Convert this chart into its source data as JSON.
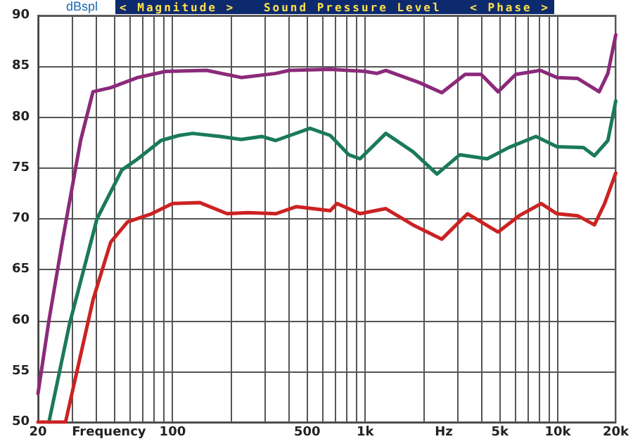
{
  "chart_data": {
    "type": "line",
    "title": "Sound Pressure Level",
    "ylabel": "dBspl",
    "xlabel": "Frequency",
    "annotations": [
      "< Magnitude >",
      "< Phase >",
      "Hz"
    ],
    "log": "x",
    "grid": true,
    "xlim": [
      20,
      20000
    ],
    "ylim": [
      50,
      90
    ],
    "xticks": [
      20,
      {
        "value": 30,
        "label": null
      },
      {
        "value": 40,
        "label": null
      },
      {
        "value": 50,
        "label": null
      },
      {
        "value": 60,
        "label": null
      },
      {
        "value": 70,
        "label": null
      },
      {
        "value": 80,
        "label": null
      },
      {
        "value": 90,
        "label": null
      },
      100,
      {
        "value": 200,
        "label": null
      },
      {
        "value": 300,
        "label": null
      },
      {
        "value": 400,
        "label": null
      },
      500,
      {
        "value": 600,
        "label": null
      },
      {
        "value": 700,
        "label": null
      },
      {
        "value": 800,
        "label": null
      },
      {
        "value": 900,
        "label": null
      },
      {
        "value": 1000,
        "label": "1k"
      },
      {
        "value": 2000,
        "label": null
      },
      {
        "value": 3000,
        "label": null
      },
      {
        "value": 4000,
        "label": null
      },
      {
        "value": 5000,
        "label": "5k"
      },
      {
        "value": 6000,
        "label": null
      },
      {
        "value": 7000,
        "label": null
      },
      {
        "value": 8000,
        "label": null
      },
      {
        "value": 9000,
        "label": null
      },
      {
        "value": 10000,
        "label": "10k"
      },
      {
        "value": 20000,
        "label": "20k"
      }
    ],
    "yticks": [
      50,
      55,
      60,
      65,
      70,
      75,
      80,
      85,
      90
    ],
    "series": [
      {
        "color": "#8b2a7a",
        "x": [
          20,
          22.8,
          26.9,
          33.3,
          38.6,
          47.7,
          66,
          92,
          150,
          227,
          343,
          404,
          658,
          1000,
          1150,
          1280,
          1910,
          2500,
          3300,
          4000,
          4900,
          6050,
          8100,
          9900,
          12700,
          16400,
          18200,
          20000
        ],
        "values": [
          52.8,
          60,
          68,
          77.7,
          82.5,
          82.9,
          83.9,
          84.5,
          84.6,
          83.9,
          84.3,
          84.6,
          84.7,
          84.5,
          84.3,
          84.6,
          83.4,
          82.4,
          84.2,
          84.2,
          82.5,
          84.2,
          84.6,
          83.9,
          83.8,
          82.5,
          84.3,
          88.1
        ]
      },
      {
        "color": "#1a7a5a",
        "x": [
          22.8,
          29.2,
          40.5,
          54.5,
          66,
          87,
          108,
          127,
          177,
          227,
          290,
          343,
          517,
          658,
          822,
          940,
          1280,
          1770,
          2360,
          3100,
          4300,
          5550,
          7700,
          9900,
          13600,
          15500,
          18200,
          20000
        ],
        "values": [
          50,
          59.7,
          70,
          74.8,
          75.9,
          77.7,
          78.2,
          78.4,
          78.1,
          77.8,
          78.1,
          77.7,
          78.9,
          78.2,
          76.3,
          75.9,
          78.4,
          76.6,
          74.4,
          76.3,
          75.9,
          77,
          78.1,
          77.1,
          77,
          76.2,
          77.7,
          81.6
        ]
      },
      {
        "color": "#cc2222",
        "x": [
          20,
          27.8,
          38.6,
          47.7,
          58.4,
          77.9,
          100,
          138,
          192,
          246,
          343,
          440,
          658,
          714,
          940,
          1280,
          1770,
          2500,
          3400,
          4900,
          6300,
          8200,
          9900,
          12700,
          15500,
          17500,
          20000
        ],
        "values": [
          50,
          50,
          62,
          67.7,
          69.7,
          70.5,
          71.5,
          71.6,
          70.5,
          70.6,
          70.5,
          71.2,
          70.8,
          71.5,
          70.5,
          71,
          69.4,
          68,
          70.5,
          68.7,
          70.3,
          71.5,
          70.5,
          70.3,
          69.4,
          71.5,
          74.5
        ]
      }
    ]
  }
}
